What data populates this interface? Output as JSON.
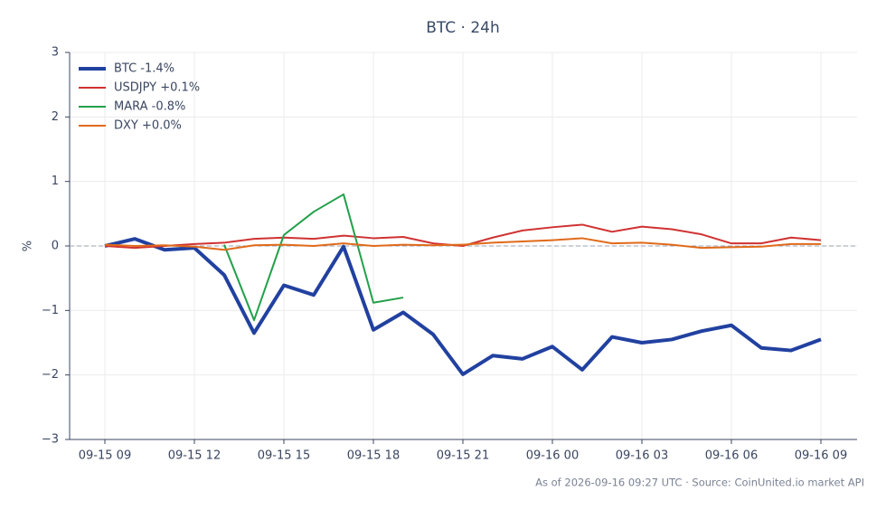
{
  "chart_data": {
    "type": "line",
    "title": "BTC · 24h",
    "ylabel": "%",
    "footer": "As of 2026-09-16 09:27 UTC · Source: CoinUnited.io market API",
    "categories": [
      "09-15 09",
      null,
      null,
      "09-15 12",
      null,
      null,
      "09-15 15",
      null,
      null,
      "09-15 18",
      null,
      null,
      "09-15 21",
      null,
      null,
      "09-16 00",
      null,
      null,
      "09-16 03",
      null,
      null,
      "09-16 06",
      null,
      null,
      "09-16 09"
    ],
    "series": [
      {
        "name": "BTC -1.4%",
        "color": "#2141a0",
        "width": 4,
        "values": [
          0.0,
          0.11,
          -0.06,
          -0.03,
          -0.45,
          -1.35,
          -0.61,
          -0.76,
          -0.01,
          -1.3,
          -1.03,
          -1.37,
          -1.99,
          -1.7,
          -1.75,
          -1.56,
          -1.92,
          -1.41,
          -1.5,
          -1.45,
          -1.32,
          -1.23,
          -1.58,
          -1.62,
          -1.45
        ]
      },
      {
        "name": "USDJPY +0.1%",
        "color": "#d03232",
        "width": 2,
        "values": [
          0.0,
          -0.03,
          0.0,
          0.03,
          0.05,
          0.11,
          0.13,
          0.11,
          0.16,
          0.12,
          0.14,
          0.04,
          0.0,
          0.13,
          0.24,
          0.29,
          0.33,
          0.22,
          0.3,
          0.26,
          0.18,
          0.04,
          0.04,
          0.13,
          0.09
        ]
      },
      {
        "name": "MARA -0.8%",
        "color": "#22a04a",
        "width": 2,
        "values": [
          null,
          null,
          null,
          null,
          0.02,
          -1.15,
          0.17,
          0.53,
          0.8,
          -0.88,
          -0.8,
          null,
          null,
          null,
          null,
          null,
          null,
          null,
          null,
          null,
          null,
          null,
          null,
          null,
          null
        ]
      },
      {
        "name": "DXY +0.0%",
        "color": "#e06a1a",
        "width": 2,
        "values": [
          0.02,
          0.0,
          0.01,
          -0.01,
          -0.06,
          0.01,
          0.02,
          0.0,
          0.04,
          0.0,
          0.02,
          0.01,
          0.02,
          0.05,
          0.07,
          0.09,
          0.12,
          0.04,
          0.05,
          0.02,
          -0.03,
          -0.02,
          -0.01,
          0.03,
          0.03
        ]
      }
    ],
    "ylim": [
      -3,
      3
    ],
    "yticks": [
      {
        "value": -3,
        "label": "−3"
      },
      {
        "value": -2,
        "label": "−2"
      },
      {
        "value": -1,
        "label": "−1"
      },
      0,
      1,
      2,
      3
    ],
    "grid": true,
    "zero_line": true,
    "legend": "upper left"
  }
}
